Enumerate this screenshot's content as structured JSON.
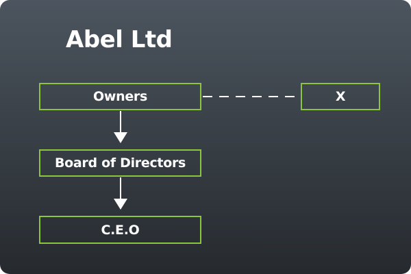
{
  "title": "Abel Ltd",
  "nodes": {
    "owners": "Owners",
    "x": "X",
    "board": "Board of Directors",
    "ceo": "C.E.O"
  },
  "colors": {
    "box_border": "#8cc63f",
    "text": "#ffffff",
    "connector": "#ffffff"
  }
}
